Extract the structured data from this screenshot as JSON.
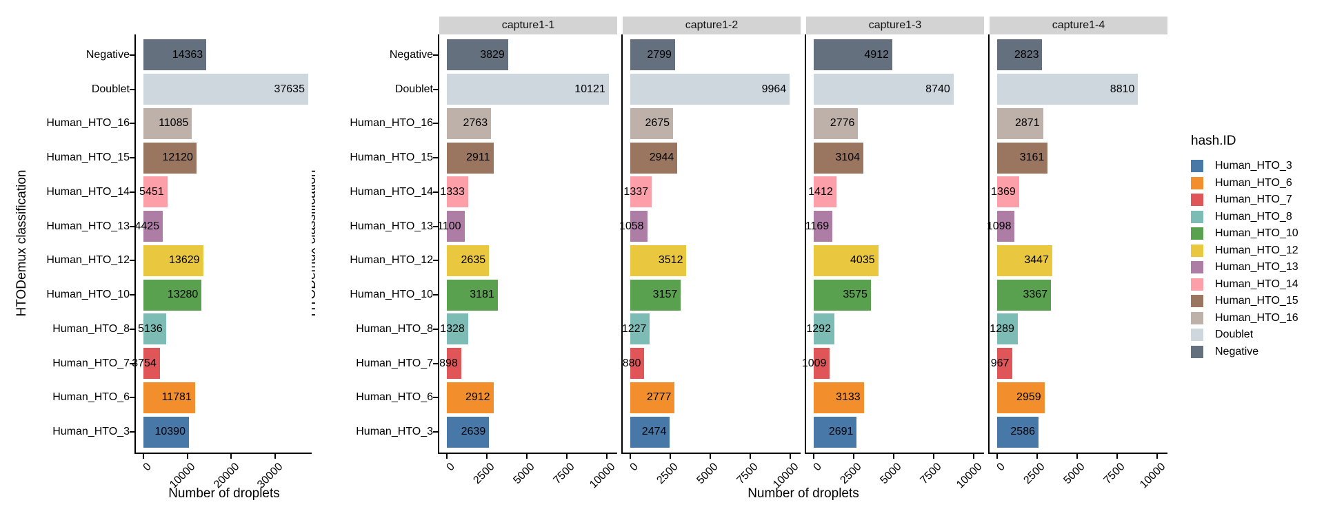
{
  "figure": {
    "x_axis_title": "Number of droplets",
    "y_axis_title": "HTODemux classification",
    "background_color": "#FFFFFF",
    "axis_color": "#000000",
    "strip_background_color": "#D3D3D3"
  },
  "legend": {
    "title": "hash.ID",
    "position": "right",
    "entries": [
      {
        "label": "Human_HTO_3",
        "color": "#4878A8"
      },
      {
        "label": "Human_HTO_6",
        "color": "#F28E2B"
      },
      {
        "label": "Human_HTO_7",
        "color": "#DF5558"
      },
      {
        "label": "Human_HTO_8",
        "color": "#7CBCB4"
      },
      {
        "label": "Human_HTO_10",
        "color": "#59A14F"
      },
      {
        "label": "Human_HTO_12",
        "color": "#E9C73F"
      },
      {
        "label": "Human_HTO_13",
        "color": "#AE7DA6"
      },
      {
        "label": "Human_HTO_14",
        "color": "#FC9FA8"
      },
      {
        "label": "Human_HTO_15",
        "color": "#9A7560"
      },
      {
        "label": "Human_HTO_16",
        "color": "#BEB1A9"
      },
      {
        "label": "Doublet",
        "color": "#CED6DE"
      },
      {
        "label": "Negative",
        "color": "#65707E"
      }
    ]
  },
  "chart_data": {
    "type": "bar",
    "orientation": "horizontal",
    "grid": false,
    "xlabel": "Number of droplets",
    "ylabel": "HTODemux classification",
    "bar_value_labels": "inside-end, clipped at panel edge",
    "x_tick_rotation_deg": 45,
    "categories_top_to_bottom": [
      "Negative",
      "Doublet",
      "Human_HTO_16",
      "Human_HTO_15",
      "Human_HTO_14",
      "Human_HTO_13",
      "Human_HTO_12",
      "Human_HTO_10",
      "Human_HTO_8",
      "Human_HTO_7",
      "Human_HTO_6",
      "Human_HTO_3"
    ],
    "category_colors": {
      "Negative": "#65707E",
      "Doublet": "#CED6DE",
      "Human_HTO_16": "#BEB1A9",
      "Human_HTO_15": "#9A7560",
      "Human_HTO_14": "#FC9FA8",
      "Human_HTO_13": "#AE7DA6",
      "Human_HTO_12": "#E9C73F",
      "Human_HTO_10": "#59A14F",
      "Human_HTO_8": "#7CBCB4",
      "Human_HTO_7": "#DF5558",
      "Human_HTO_6": "#F28E2B",
      "Human_HTO_3": "#4878A8"
    },
    "panels": [
      {
        "name": "overall",
        "strip_label": "",
        "x_ticks": [
          0,
          10000,
          20000,
          30000
        ],
        "xlim": [
          0,
          39500
        ],
        "values": {
          "Negative": 14363,
          "Doublet": 37635,
          "Human_HTO_16": 11085,
          "Human_HTO_15": 12120,
          "Human_HTO_14": 5451,
          "Human_HTO_13": 4425,
          "Human_HTO_12": 13629,
          "Human_HTO_10": 13280,
          "Human_HTO_8": 5136,
          "Human_HTO_7": 3754,
          "Human_HTO_6": 11781,
          "Human_HTO_3": 10390
        }
      },
      {
        "name": "capture1-1",
        "strip_label": "capture1-1",
        "x_ticks": [
          0,
          2500,
          5000,
          7500,
          10000
        ],
        "xlim": [
          0,
          10630
        ],
        "values": {
          "Negative": 3829,
          "Doublet": 10121,
          "Human_HTO_16": 2763,
          "Human_HTO_15": 2911,
          "Human_HTO_14": 1333,
          "Human_HTO_13": 1100,
          "Human_HTO_12": 2635,
          "Human_HTO_10": 3181,
          "Human_HTO_8": 1328,
          "Human_HTO_7": 898,
          "Human_HTO_6": 2912,
          "Human_HTO_3": 2639
        }
      },
      {
        "name": "capture1-2",
        "strip_label": "capture1-2",
        "x_ticks": [
          0,
          2500,
          5000,
          7500,
          10000
        ],
        "xlim": [
          0,
          10630
        ],
        "values": {
          "Negative": 2799,
          "Doublet": 9964,
          "Human_HTO_16": 2675,
          "Human_HTO_15": 2944,
          "Human_HTO_14": 1337,
          "Human_HTO_13": 1058,
          "Human_HTO_12": 3512,
          "Human_HTO_10": 3157,
          "Human_HTO_8": 1227,
          "Human_HTO_7": 880,
          "Human_HTO_6": 2777,
          "Human_HTO_3": 2474
        }
      },
      {
        "name": "capture1-3",
        "strip_label": "capture1-3",
        "x_ticks": [
          0,
          2500,
          5000,
          7500,
          10000
        ],
        "xlim": [
          0,
          10630
        ],
        "values": {
          "Negative": 4912,
          "Doublet": 8740,
          "Human_HTO_16": 2776,
          "Human_HTO_15": 3104,
          "Human_HTO_14": 1412,
          "Human_HTO_13": 1169,
          "Human_HTO_12": 4035,
          "Human_HTO_10": 3575,
          "Human_HTO_8": 1292,
          "Human_HTO_7": 1009,
          "Human_HTO_6": 3133,
          "Human_HTO_3": 2691
        }
      },
      {
        "name": "capture1-4",
        "strip_label": "capture1-4",
        "x_ticks": [
          0,
          2500,
          5000,
          7500,
          10000
        ],
        "xlim": [
          0,
          10630
        ],
        "values": {
          "Negative": 2823,
          "Doublet": 8810,
          "Human_HTO_16": 2871,
          "Human_HTO_15": 3161,
          "Human_HTO_14": 1369,
          "Human_HTO_13": 1098,
          "Human_HTO_12": 3447,
          "Human_HTO_10": 3367,
          "Human_HTO_8": 1289,
          "Human_HTO_7": 967,
          "Human_HTO_6": 2959,
          "Human_HTO_3": 2586
        }
      }
    ]
  }
}
